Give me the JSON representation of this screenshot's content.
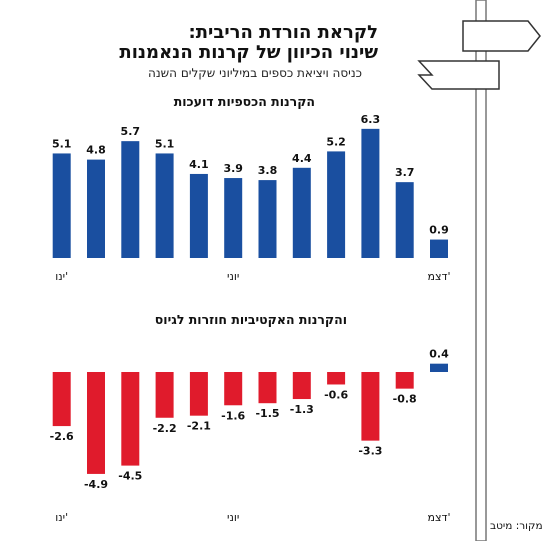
{
  "header": {
    "headline_line1": "לקראת הורדת הריבית:",
    "headline_line2": "שינוי הכיוון של קרנות הנאמנות",
    "subtitle": "כניסה ויציאת כספים במיליוני שקלים השנה"
  },
  "source_note": "מקור: מיטב",
  "colors": {
    "positive": "#1a4fa0",
    "negative": "#e01b2c",
    "pole": "#9a9a9a"
  },
  "decor": {
    "signpost": "signpost-icon"
  },
  "chart_data": [
    {
      "type": "bar",
      "title": "הקרנות הכספיות דועכות",
      "categories": [
        "ינו'",
        "",
        "",
        "",
        "",
        "יוני",
        "",
        "",
        "",
        "",
        "",
        "דצמ'"
      ],
      "tick_labels": [
        "ינו'",
        "יוני",
        "דצמ'"
      ],
      "values": [
        5.1,
        4.8,
        5.7,
        5.1,
        4.1,
        3.9,
        3.8,
        4.4,
        5.2,
        6.3,
        3.7,
        0.9
      ],
      "value_labels": [
        "5.1",
        "4.8",
        "5.7",
        "5.1",
        "4.1",
        "3.9",
        "3.8",
        "4.4",
        "5.2",
        "6.3",
        "3.7",
        "0.9"
      ],
      "direction": "right-to-left",
      "grid": false,
      "legend": "none"
    },
    {
      "type": "bar",
      "title": "והקרנות האקטיביות חוזרות לגיוס",
      "categories": [
        "ינו'",
        "",
        "",
        "",
        "",
        "יוני",
        "",
        "",
        "",
        "",
        "",
        "דצמ'"
      ],
      "tick_labels": [
        "ינו'",
        "יוני",
        "דצמ'"
      ],
      "values": [
        -2.6,
        -4.9,
        -4.5,
        -2.2,
        -2.1,
        -1.6,
        -1.5,
        -1.3,
        -0.6,
        -3.3,
        -0.8,
        0.4
      ],
      "value_labels": [
        "-2.6",
        "-4.9",
        "-4.5",
        "-2.2",
        "-2.1",
        "-1.6",
        "-1.5",
        "-1.3",
        "-0.6",
        "-3.3",
        "-0.8",
        "0.4"
      ],
      "direction": "right-to-left",
      "grid": false,
      "legend": "none"
    }
  ]
}
